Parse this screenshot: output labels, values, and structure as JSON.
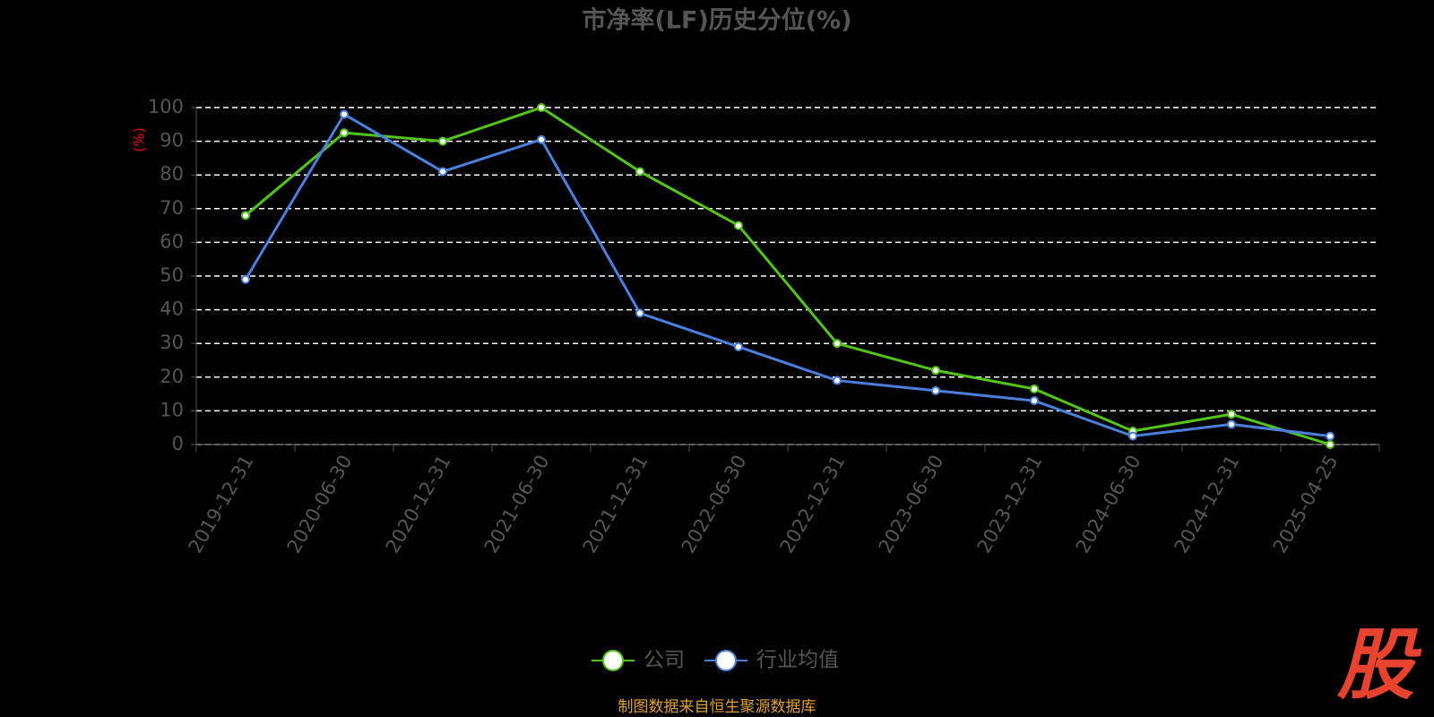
{
  "chart_data": {
    "type": "line",
    "title": "市净率(LF)历史分位(%)",
    "y_label": "(%)",
    "categories": [
      "2019-12-31",
      "2020-06-30",
      "2020-12-31",
      "2021-06-30",
      "2021-12-31",
      "2022-06-30",
      "2022-12-31",
      "2023-06-30",
      "2023-12-31",
      "2024-06-30",
      "2024-12-31",
      "2025-04-25"
    ],
    "series": [
      {
        "name": "公司",
        "color": "#52c41a",
        "values": [
          68,
          92.5,
          90,
          100,
          81,
          65,
          30,
          22,
          16.5,
          4,
          9,
          0
        ]
      },
      {
        "name": "行业均值",
        "color": "#4a7fdc",
        "values": [
          49,
          98,
          81,
          90.5,
          39,
          29,
          19,
          16,
          13,
          2.5,
          6,
          2.5
        ]
      }
    ],
    "ylim": [
      0,
      100
    ],
    "yticks": [
      0,
      10,
      20,
      30,
      40,
      50,
      60,
      70,
      80,
      90,
      100
    ],
    "grid": true,
    "legend": "bottom",
    "source": "制图数据来自恒生聚源数据库",
    "logo": "股"
  }
}
